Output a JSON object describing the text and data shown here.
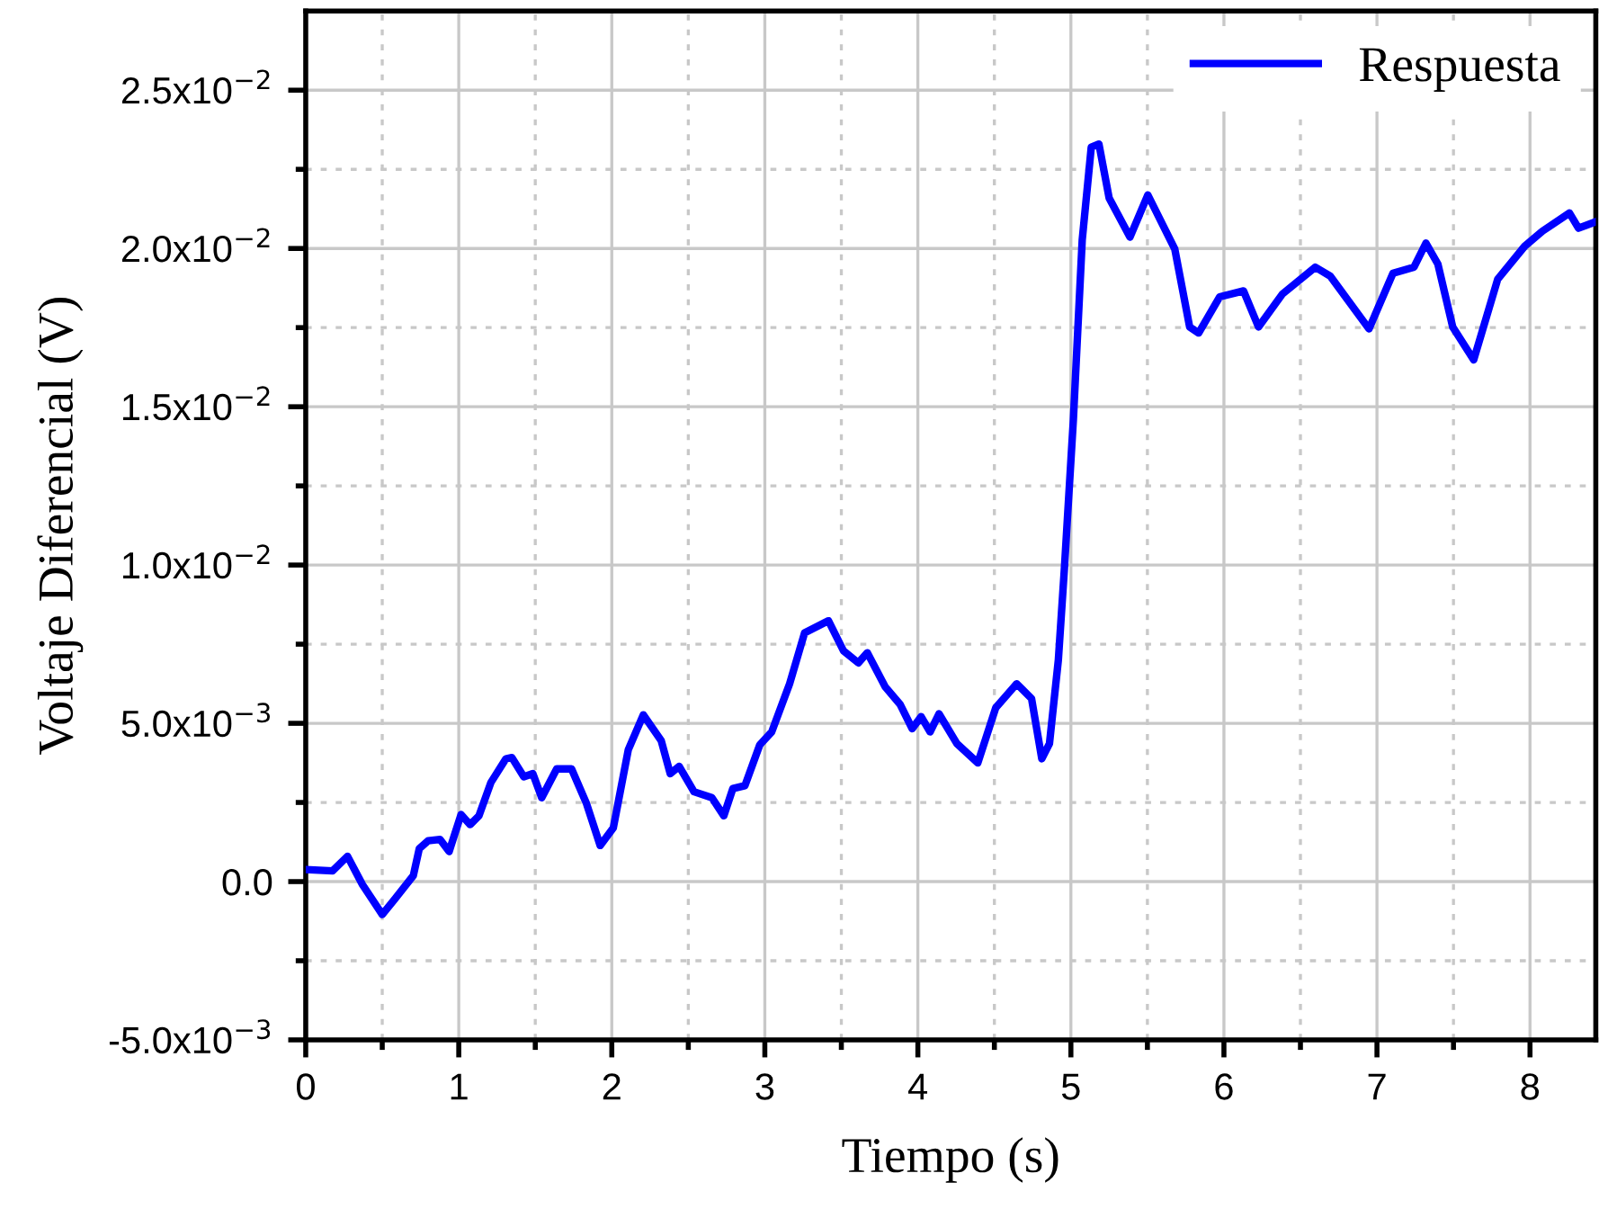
{
  "chart_data": {
    "type": "line",
    "xlabel": "Tiempo (s)",
    "ylabel": "Voltaje Diferencial (V)",
    "xlim": [
      0,
      8.43
    ],
    "ylim": [
      -0.005,
      0.0275
    ],
    "xticks": [
      0,
      {
        "value": 0.5,
        "label": null
      },
      1,
      {
        "value": 1.5,
        "label": null
      },
      2,
      {
        "value": 2.5,
        "label": null
      },
      3,
      {
        "value": 3.5,
        "label": null
      },
      4,
      {
        "value": 4.5,
        "label": null
      },
      5,
      {
        "value": 5.5,
        "label": null
      },
      6,
      {
        "value": 6.5,
        "label": null
      },
      7,
      {
        "value": 7.5,
        "label": null
      },
      8
    ],
    "yticks": [
      {
        "value": -0.005,
        "label": "-5.0x10$^{−3}$"
      },
      {
        "value": -0.0025,
        "label": null
      },
      {
        "value": 0,
        "label": "0.0"
      },
      {
        "value": 0.0025,
        "label": null
      },
      {
        "value": 0.005,
        "label": "5.0x10$^{−3}$"
      },
      {
        "value": 0.0075,
        "label": null
      },
      {
        "value": 0.01,
        "label": "1.0x10$^{−2}$"
      },
      {
        "value": 0.0125,
        "label": null
      },
      {
        "value": 0.015,
        "label": "1.5x10$^{−2}$"
      },
      {
        "value": 0.0175,
        "label": null
      },
      {
        "value": 0.02,
        "label": "2.0x10$^{−2}$"
      },
      {
        "value": 0.0225,
        "label": null
      },
      {
        "value": 0.025,
        "label": "2.5x10$^{−2}$"
      }
    ],
    "grid": true,
    "legend": "top right",
    "marker": "none",
    "line_style": "solid",
    "series": [
      {
        "name": "Respuesta",
        "color": "#0000ff",
        "x": [
          0,
          0.176,
          0.273,
          0.371,
          0.5,
          0.586,
          0.703,
          0.742,
          0.8,
          0.878,
          0.937,
          1.015,
          1.074,
          1.132,
          1.21,
          1.308,
          1.347,
          1.425,
          1.484,
          1.542,
          1.64,
          1.737,
          1.835,
          1.924,
          2.01,
          2.108,
          2.206,
          2.323,
          2.382,
          2.44,
          2.537,
          2.654,
          2.732,
          2.791,
          2.87,
          2.967,
          3.045,
          3.162,
          3.26,
          3.416,
          3.514,
          3.611,
          3.67,
          3.787,
          3.885,
          3.963,
          4.021,
          4.08,
          4.138,
          4.255,
          4.392,
          4.509,
          4.646,
          4.743,
          4.81,
          4.86,
          4.918,
          4.957,
          5.016,
          5.074,
          5.133,
          5.183,
          5.25,
          5.386,
          5.503,
          5.679,
          5.776,
          5.835,
          5.972,
          6.128,
          6.226,
          6.382,
          6.597,
          6.694,
          6.948,
          7.105,
          7.242,
          7.32,
          7.398,
          7.495,
          7.632,
          7.789,
          7.965,
          8.082,
          8.258,
          8.317,
          8.422
        ],
        "values": [
          0.00038,
          0.00034,
          0.0008,
          -0.0001,
          -0.00104,
          -0.00053,
          0.00019,
          0.00104,
          0.00129,
          0.00133,
          0.00095,
          0.00212,
          0.0018,
          0.00208,
          0.00313,
          0.00388,
          0.00392,
          0.00331,
          0.00341,
          0.00265,
          0.00356,
          0.00356,
          0.00246,
          0.00114,
          0.0017,
          0.00417,
          0.00527,
          0.00445,
          0.00341,
          0.00364,
          0.00284,
          0.00265,
          0.00208,
          0.00294,
          0.00303,
          0.00432,
          0.00473,
          0.00625,
          0.00786,
          0.00824,
          0.00729,
          0.00691,
          0.00723,
          0.00615,
          0.00559,
          0.00483,
          0.00521,
          0.00473,
          0.0053,
          0.00436,
          0.00375,
          0.00549,
          0.00625,
          0.00578,
          0.00388,
          0.00436,
          0.007,
          0.00985,
          0.01458,
          0.02027,
          0.0232,
          0.0233,
          0.02159,
          0.02036,
          0.02169,
          0.01998,
          0.01752,
          0.01733,
          0.01847,
          0.01866,
          0.01752,
          0.01856,
          0.01941,
          0.01913,
          0.01746,
          0.01922,
          0.01941,
          0.02017,
          0.01951,
          0.01752,
          0.01648,
          0.01903,
          0.02007,
          0.02055,
          0.02112,
          0.02064,
          0.02083
        ]
      }
    ]
  }
}
